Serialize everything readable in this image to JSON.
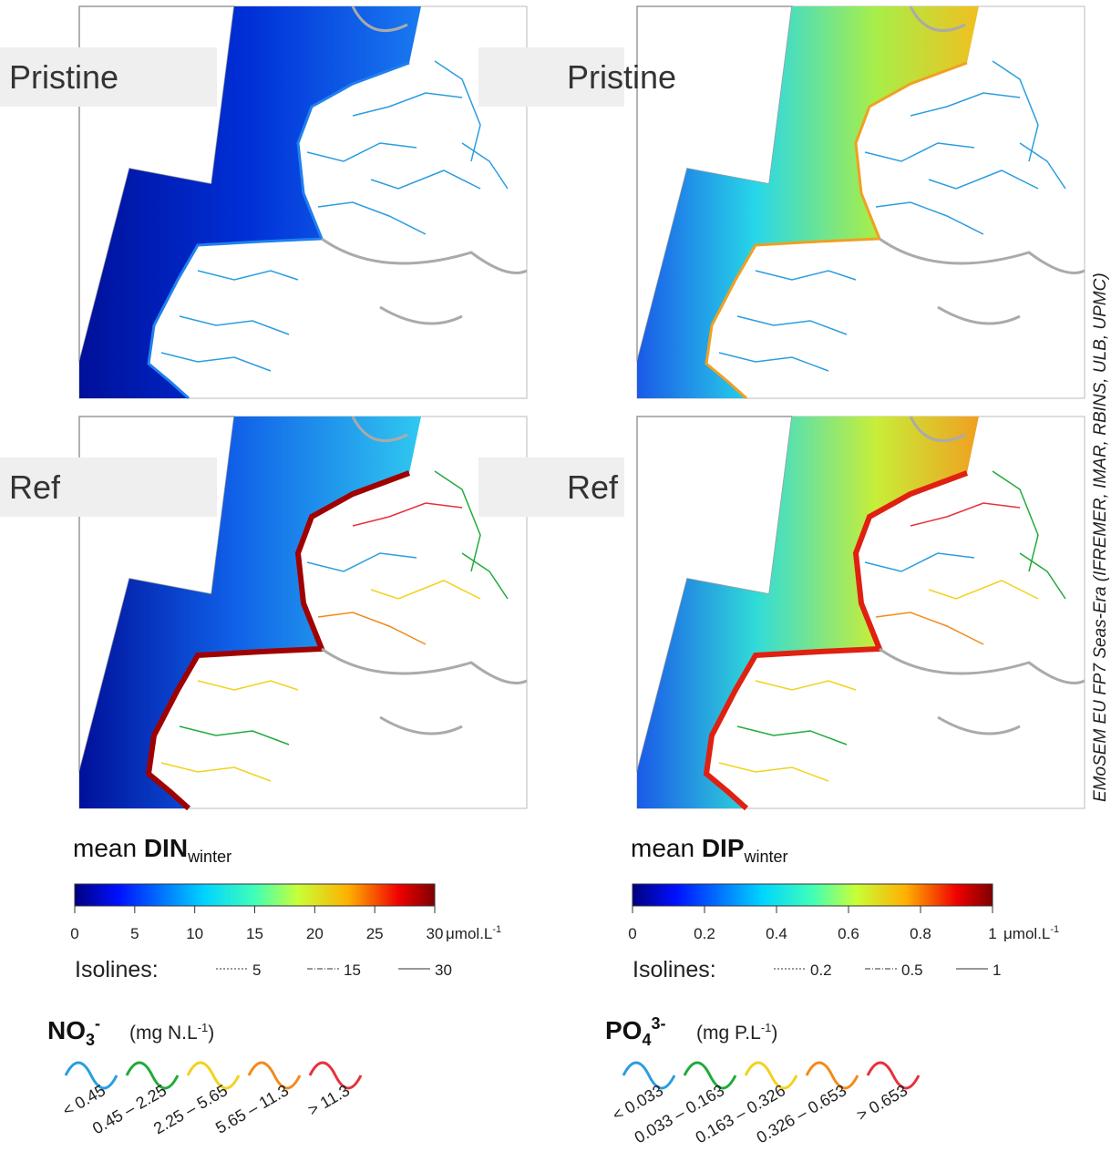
{
  "credit": "EMoSEM EU FP7 Seas-Era (IFREMER, IMAR, RBINS, ULB, UPMC)",
  "columns": [
    {
      "panels": [
        {
          "label": "Pristine"
        },
        {
          "label": "Ref"
        }
      ],
      "legend": {
        "title": "mean ",
        "title_bold": "DIN",
        "title_sub": "winter",
        "ticks": [
          0,
          5,
          10,
          15,
          20,
          25,
          30
        ],
        "range": [
          0,
          30
        ],
        "unit": "μmol.L",
        "unit_sup": "-1",
        "isolines_label": "Isolines:",
        "isolines": [
          "5",
          "15",
          "30"
        ]
      },
      "classes": {
        "formula": "NO",
        "formula_sub": "3",
        "formula_sup": "-",
        "unit": "(mg N.L",
        "unit_sup": "-1",
        "unit_end": ")",
        "items": [
          {
            "label": "< 0.45",
            "color": "#2a9de0"
          },
          {
            "label": "0.45 – 2.25",
            "color": "#22aa3a"
          },
          {
            "label": "2.25 – 5.65",
            "color": "#f2d21c"
          },
          {
            "label": "5.65 – 11.3",
            "color": "#f28a1a"
          },
          {
            "label": "> 11.3",
            "color": "#e8303a"
          }
        ]
      }
    },
    {
      "panels": [
        {
          "label": "Pristine"
        },
        {
          "label": "Ref"
        }
      ],
      "legend": {
        "title": "mean ",
        "title_bold": "DIP",
        "title_sub": "winter",
        "ticks": [
          0,
          0.2,
          0.4,
          0.6,
          0.8,
          1
        ],
        "range": [
          0,
          1
        ],
        "unit": "μmol.L",
        "unit_sup": "-1",
        "isolines_label": "Isolines:",
        "isolines": [
          "0.2",
          "0.5",
          "1"
        ]
      },
      "classes": {
        "formula": "PO",
        "formula_sub": "4",
        "formula_sup": "3-",
        "unit": "(mg P.L",
        "unit_sup": "-1",
        "unit_end": ")",
        "items": [
          {
            "label": "< 0.033",
            "color": "#2a9de0"
          },
          {
            "label": "0.033 – 0.163",
            "color": "#22aa3a"
          },
          {
            "label": "0.163 – 0.326",
            "color": "#f2d21c"
          },
          {
            "label": "0.326 – 0.653",
            "color": "#f28a1a"
          },
          {
            "label": "> 0.653",
            "color": "#e8303a"
          }
        ]
      }
    }
  ]
}
